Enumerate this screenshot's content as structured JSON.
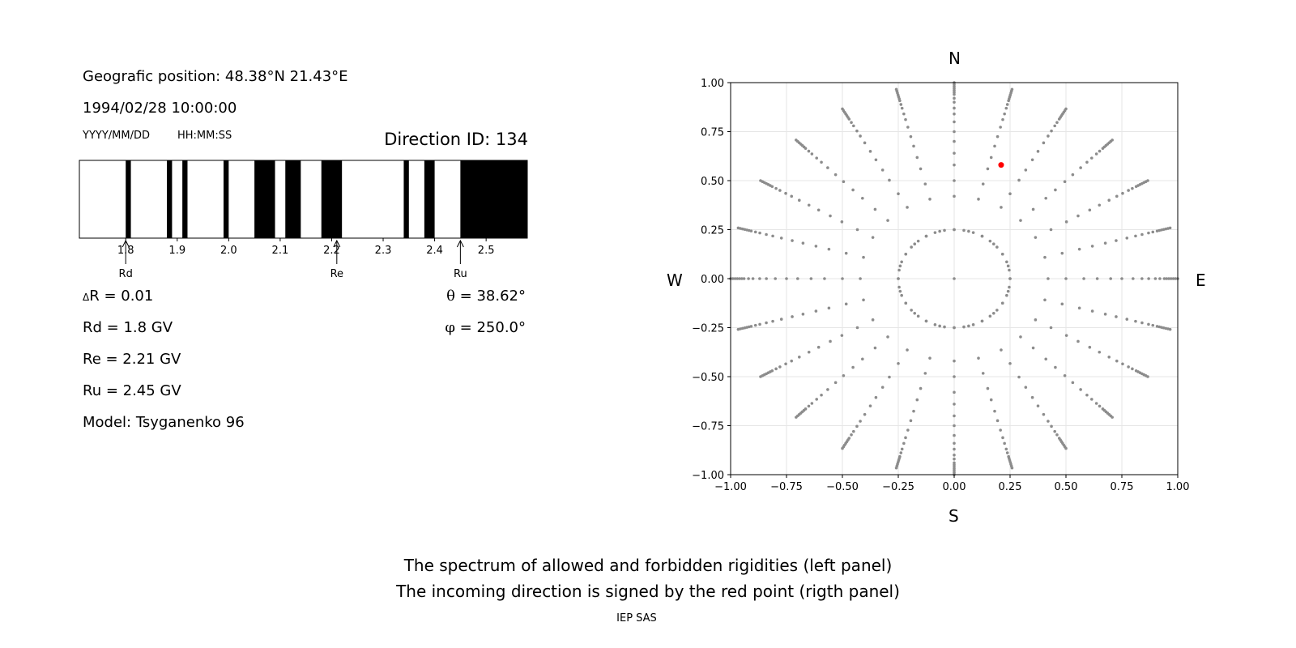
{
  "left_panel": {
    "position": "Geografic position: 48.38°N 21.43°E",
    "datetime": "1994/02/28 10:00:00",
    "date_format": "YYYY/MM/DD",
    "time_format": "HH:MM:SS",
    "direction_id": "Direction ID: 134",
    "delta_r_symbol": "Δ",
    "delta_r": "R = 0.01",
    "rd": "Rd = 1.8 GV",
    "re": "Re = 2.21 GV",
    "ru": "Ru = 2.45 GV",
    "model": "Model: Tsyganenko 96",
    "theta_symbol": "θ",
    "theta": " = 38.62°",
    "phi_symbol": "φ",
    "phi": " = 250.0°"
  },
  "footer": {
    "line1": "The spectrum of allowed and forbidden rigidities (left panel)",
    "line2": "The incoming direction is signed by the red point (rigth panel)",
    "credit": "IEP SAS"
  },
  "chart_data": [
    {
      "type": "bar",
      "description_role": "rigidity spectrum (black = forbidden, white = allowed)",
      "xlim": [
        1.71,
        2.58
      ],
      "xticks": [
        "1.8",
        "1.9",
        "2.0",
        "2.1",
        "2.2",
        "2.3",
        "2.4",
        "2.5"
      ],
      "xtick_values": [
        1.8,
        1.9,
        2.0,
        2.1,
        2.2,
        2.3,
        2.4,
        2.5
      ],
      "forbidden_bands": [
        [
          1.8,
          1.81
        ],
        [
          1.88,
          1.89
        ],
        [
          1.91,
          1.92
        ],
        [
          1.99,
          2.0
        ],
        [
          2.05,
          2.09
        ],
        [
          2.11,
          2.14
        ],
        [
          2.18,
          2.22
        ],
        [
          2.34,
          2.35
        ],
        [
          2.38,
          2.4
        ],
        [
          2.45,
          2.58
        ]
      ],
      "markers": [
        {
          "label": "Rd",
          "value": 1.8
        },
        {
          "label": "Re",
          "value": 2.21
        },
        {
          "label": "Ru",
          "value": 2.45
        }
      ],
      "colors": {
        "forbidden": "#000000",
        "allowed": "#ffffff"
      }
    },
    {
      "type": "scatter",
      "description_role": "incoming directions",
      "xlim": [
        -1.0,
        1.0
      ],
      "ylim": [
        -1.0,
        1.0
      ],
      "xticks": [
        "−1.00",
        "−0.75",
        "−0.50",
        "−0.25",
        "0.00",
        "0.25",
        "0.50",
        "0.75",
        "1.00"
      ],
      "yticks": [
        "−1.00",
        "−0.75",
        "−0.50",
        "−0.25",
        "0.00",
        "0.25",
        "0.50",
        "0.75",
        "1.00"
      ],
      "tick_values": [
        -1.0,
        -0.75,
        -0.5,
        -0.25,
        0.0,
        0.25,
        0.5,
        0.75,
        1.0
      ],
      "grid": true,
      "compass": {
        "north": "N",
        "south": "S",
        "west": "W",
        "east": "E"
      },
      "grid_series": {
        "color": "#8c8c8c",
        "radial_lines_deg_step": 15,
        "radii": [
          0.0,
          0.25,
          0.42,
          0.5,
          0.58,
          0.64,
          0.7,
          0.75,
          0.8,
          0.84,
          0.87,
          0.9,
          0.92,
          0.94,
          0.95,
          0.96,
          0.97,
          0.98,
          0.99,
          1.0
        ]
      },
      "selected_point": {
        "x": 0.21,
        "y": 0.58,
        "color": "#ff0000"
      }
    }
  ]
}
